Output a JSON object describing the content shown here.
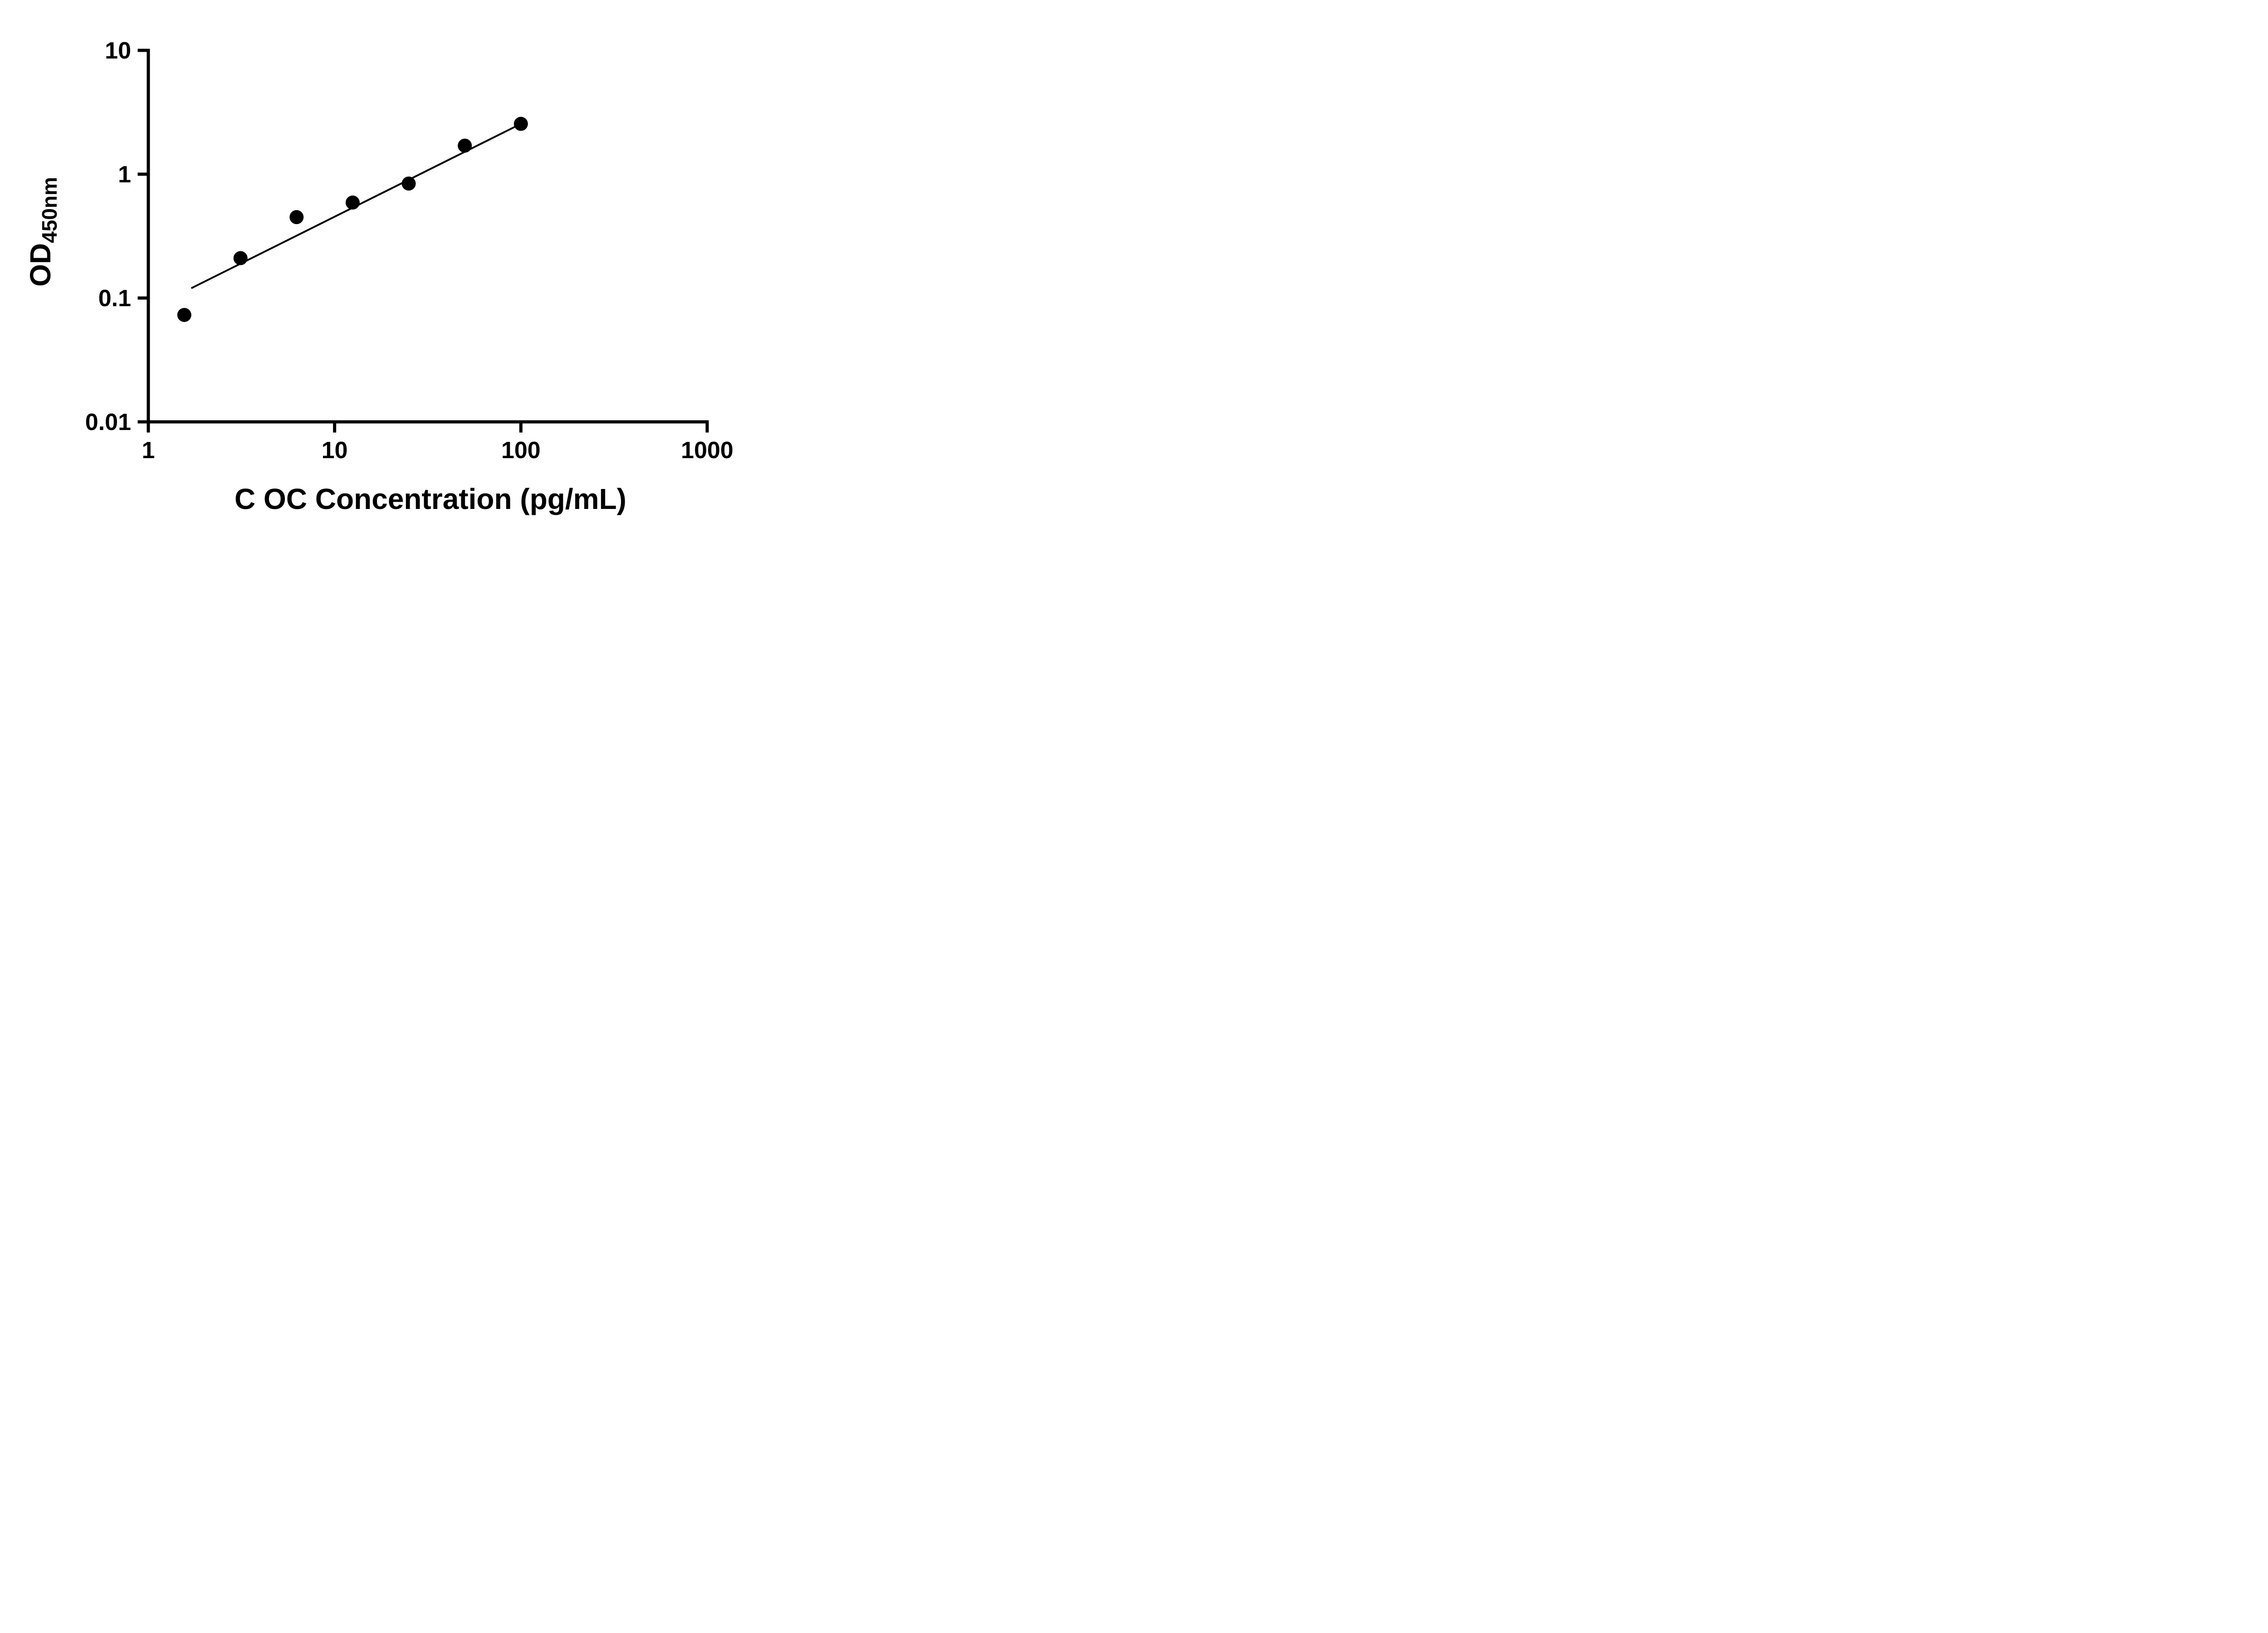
{
  "chart_data": {
    "type": "scatter",
    "xlabel": "C OC Concentration (pg/mL)",
    "ylabel_main": "OD",
    "ylabel_sub": "450nm",
    "x_scale": "log",
    "y_scale": "log",
    "xlim": [
      1,
      1000
    ],
    "ylim": [
      0.01,
      10
    ],
    "x_ticks": [
      "1",
      "10",
      "100",
      "1000"
    ],
    "x_tick_values": [
      1,
      10,
      100,
      1000
    ],
    "y_ticks": [
      "0.01",
      "0.1",
      "1",
      "10"
    ],
    "y_tick_values": [
      0.01,
      0.1,
      1,
      10
    ],
    "points": [
      {
        "x": 1.56,
        "y": 0.073
      },
      {
        "x": 3.125,
        "y": 0.21
      },
      {
        "x": 6.25,
        "y": 0.45
      },
      {
        "x": 12.5,
        "y": 0.59
      },
      {
        "x": 25,
        "y": 0.84
      },
      {
        "x": 50,
        "y": 1.7
      },
      {
        "x": 100,
        "y": 2.55
      }
    ],
    "trendline": {
      "x1": 1.7,
      "y1": 0.12,
      "x2": 100,
      "y2": 2.55
    },
    "marker_color": "#000000",
    "line_color": "#000000",
    "axis_color": "#000000",
    "grid": false,
    "legend": null
  }
}
